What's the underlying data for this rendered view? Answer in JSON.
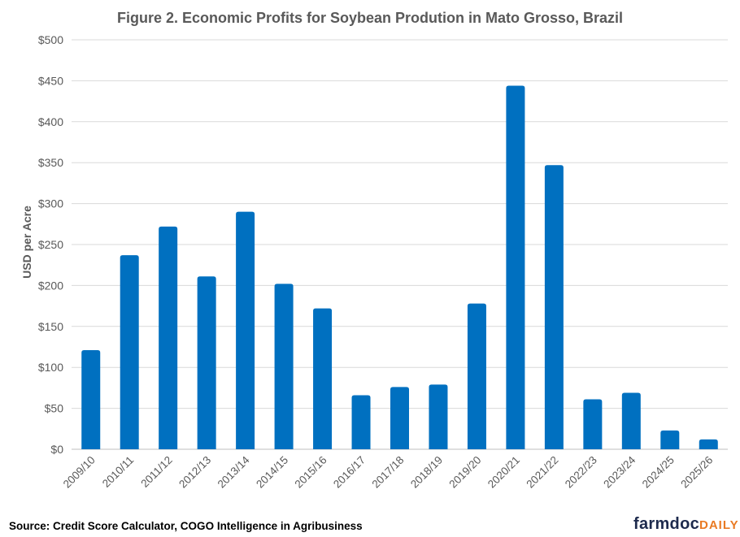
{
  "chart_data": {
    "type": "bar",
    "title": "Figure 2. Economic Profits for Soybean Prodution in Mato Grosso, Brazil",
    "xlabel": "",
    "ylabel": "USD per Acre",
    "ylim": [
      0,
      500
    ],
    "yticks": [
      "$0",
      "$50",
      "$100",
      "$150",
      "$200",
      "$250",
      "$300",
      "$350",
      "$400",
      "$450",
      "$500"
    ],
    "grid": true,
    "categories": [
      "2009/10",
      "2010/11",
      "2011/12",
      "2012/13",
      "2013/14",
      "2014/15",
      "2015/16",
      "2016/17",
      "2017/18",
      "2018/19",
      "2019/20",
      "2020/21",
      "2021/22",
      "2022/23",
      "2023/24",
      "2024/25",
      "2025/26"
    ],
    "values": [
      121,
      237,
      272,
      211,
      290,
      202,
      172,
      66,
      76,
      79,
      178,
      444,
      347,
      61,
      69,
      23,
      12
    ],
    "color": "#0070c0"
  },
  "source": "Source: Credit Score Calculator, COGO Intelligence in Agribusiness",
  "logo": {
    "main": "farmdoc",
    "accent": "DAILY"
  }
}
